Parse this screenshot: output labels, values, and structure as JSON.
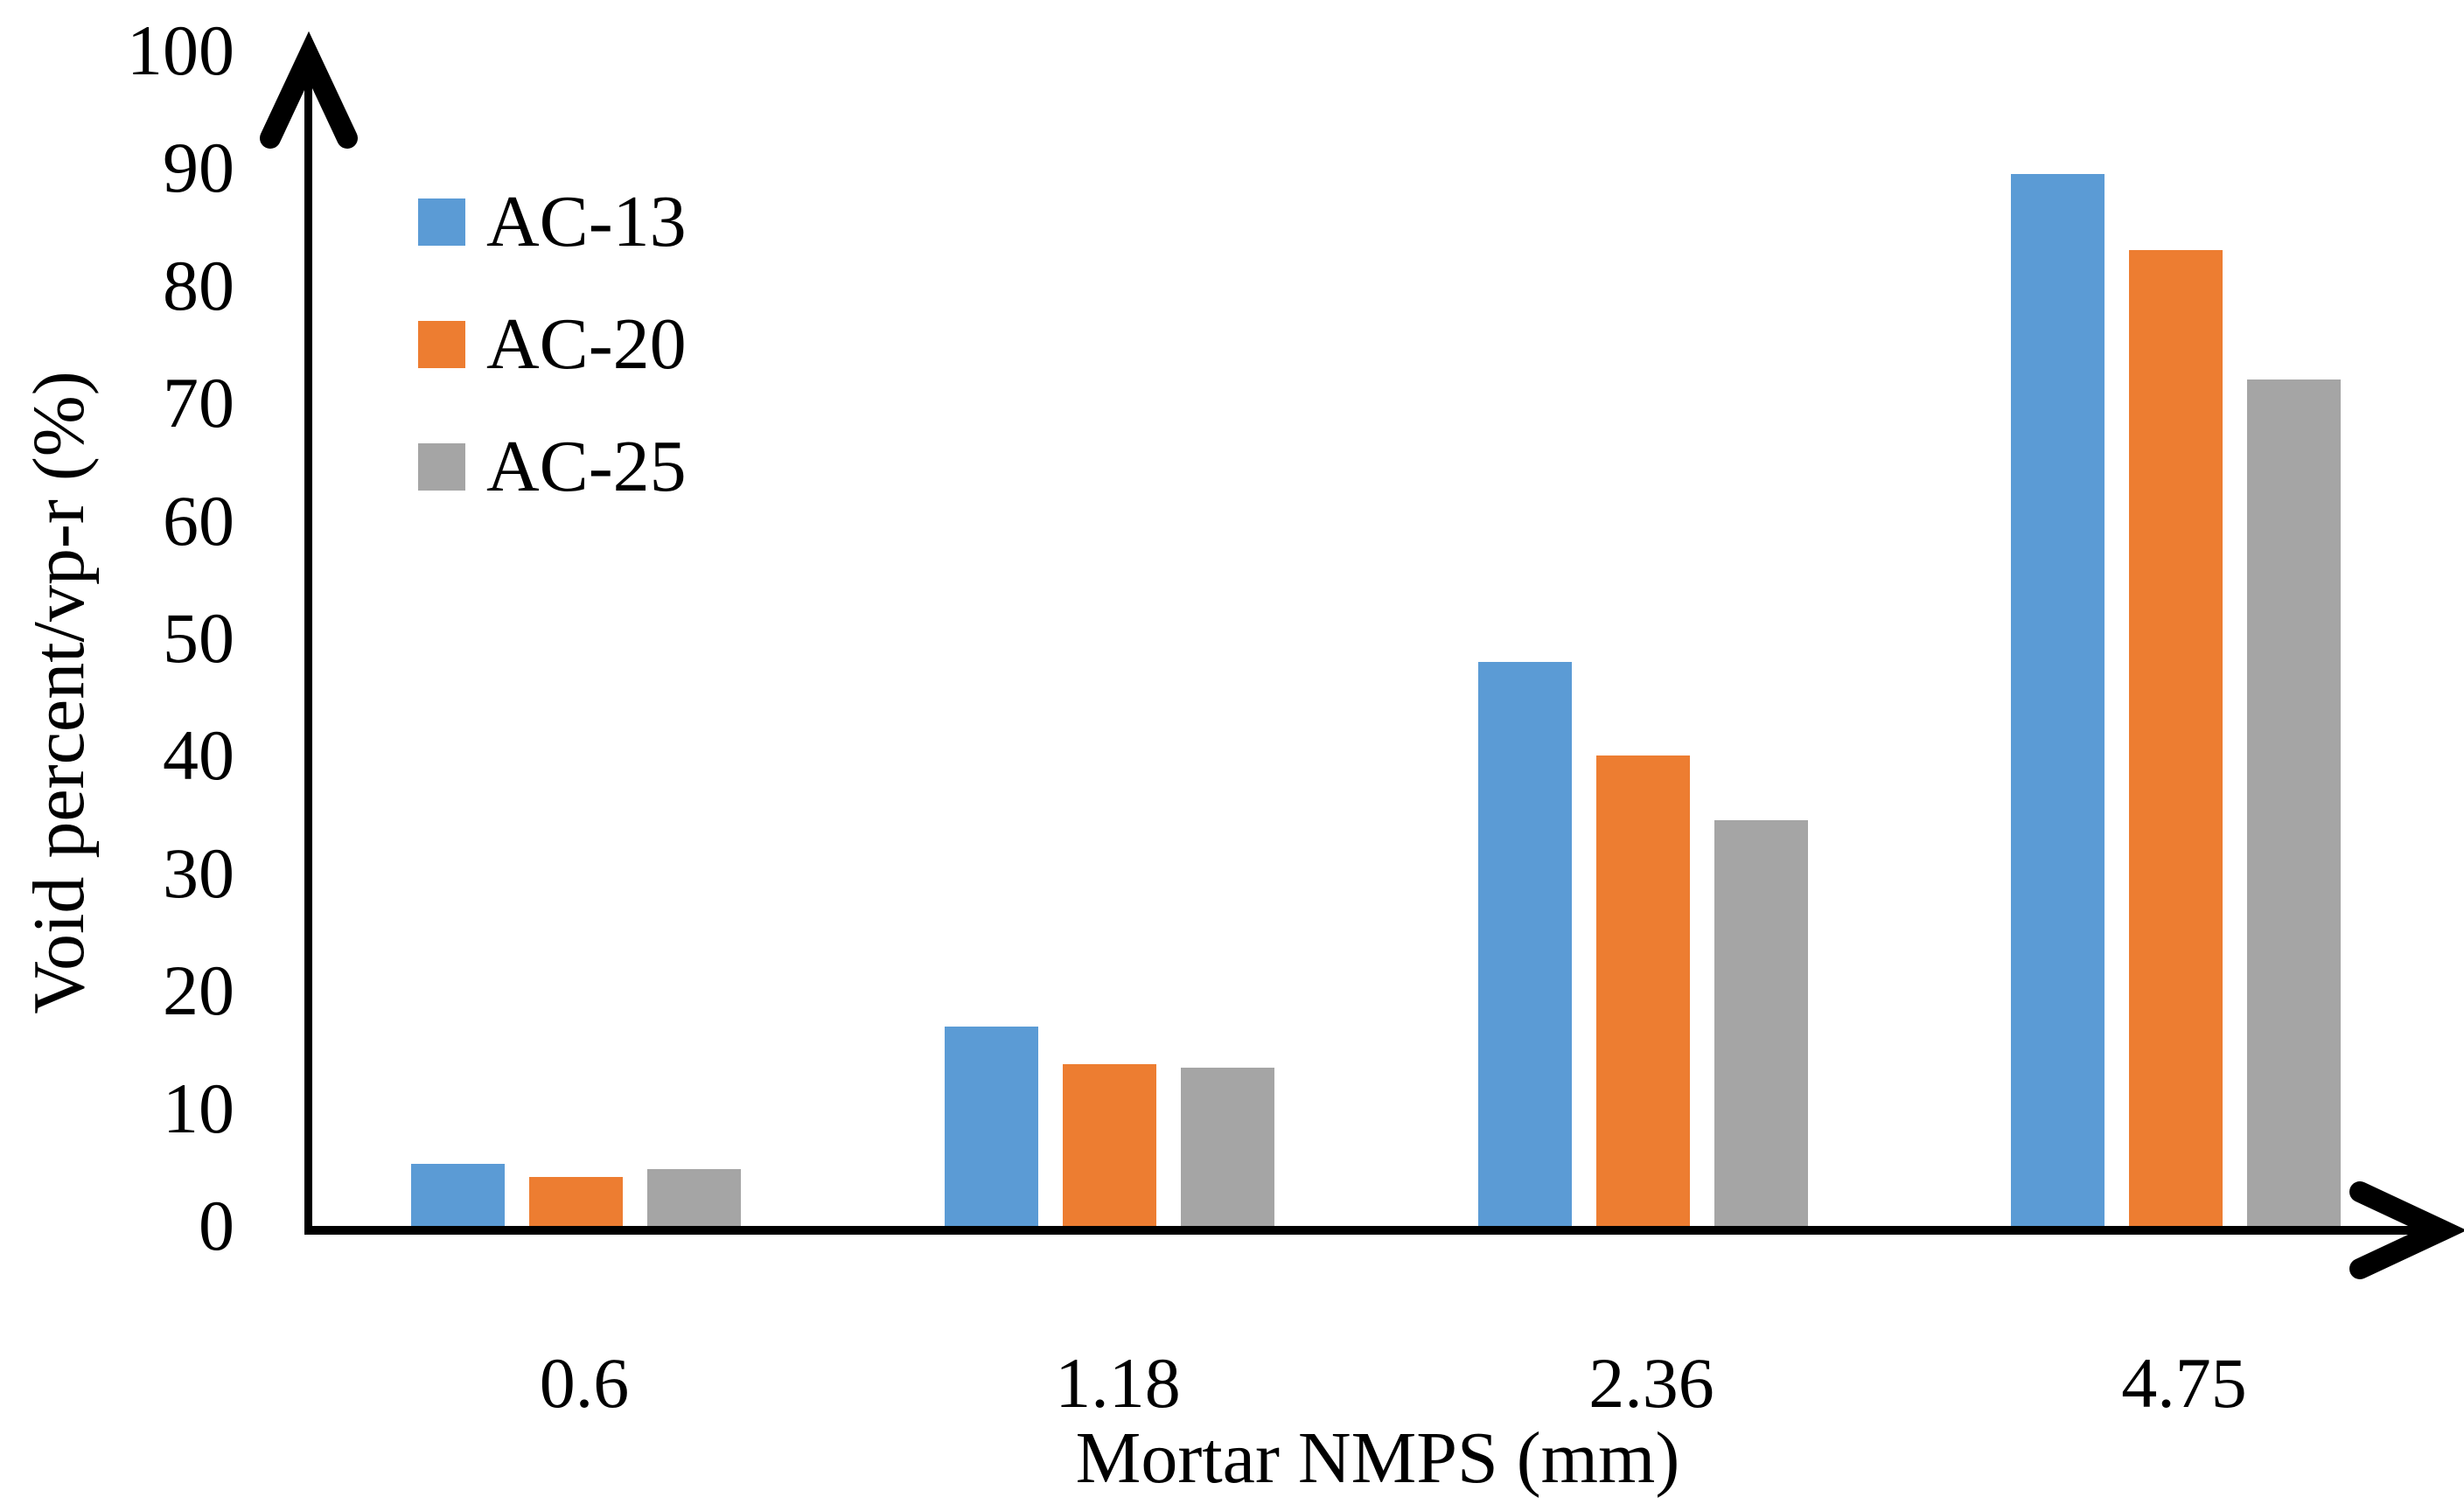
{
  "chart_data": {
    "type": "bar",
    "title": "",
    "xlabel": "Mortar NMPS (mm)",
    "ylabel": "Void percent/vp-r (%)",
    "categories": [
      "0.6",
      "1.18",
      "2.36",
      "4.75"
    ],
    "series": [
      {
        "name": "AC-13",
        "color": "#5B9BD5",
        "values": [
          5.3,
          17,
          48,
          89.5
        ]
      },
      {
        "name": "AC-20",
        "color": "#ED7D31",
        "values": [
          4.2,
          13.8,
          40,
          83
        ]
      },
      {
        "name": "AC-25",
        "color": "#A5A5A5",
        "values": [
          4.8,
          13.5,
          34.5,
          72
        ]
      }
    ],
    "ylim": [
      0,
      100
    ],
    "yticks": [
      0,
      10,
      20,
      30,
      40,
      50,
      60,
      70,
      80,
      90,
      100
    ],
    "legend_position": "upper-left",
    "grid": false,
    "axis_color": "#000000",
    "background_color": "#FFFFFF"
  }
}
